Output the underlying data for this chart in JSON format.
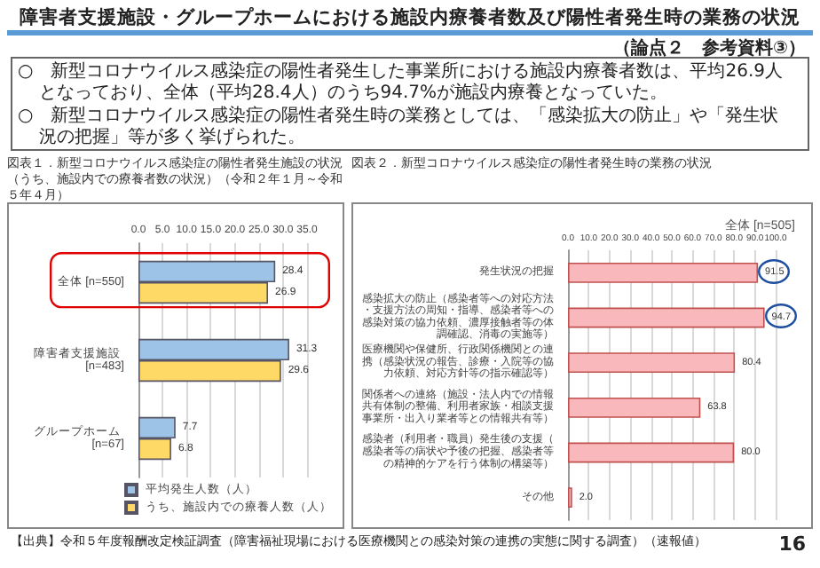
{
  "chart_data": [
    {
      "type": "bar",
      "orientation": "horizontal",
      "title": "図表１．新型コロナウイルス感染症の陽性者発生施設の状況（うち、施設内での療養者数の状況）（令和２年１月～令和５年４月）",
      "annotations": [
        "障害者支援施設・グループホームにおける施設内療養者数及び陽性者発生時の業務の状況",
        "（論点２　参考資料③）",
        "○　新型コロナウイルス感染症の陽性者発生した事業所における施設内療養者数は、平均26.9人となっており、全体（平均28.4人）のうち94.7%が施設内療養となっていた。",
        "○　新型コロナウイルス感染症の陽性者発生時の業務としては、「感染拡大の防止」や「発生状況の把握」等が多く挙げられた。",
        "【出典】令和５年度報酬改定検証調査（障害福祉現場における医療機関との感染対策の連携の実態に関する調査）（速報値）",
        "16"
      ],
      "categories": [
        "全体 [n=550]",
        "障害者支援施設 [n=483]",
        "グループホーム [n=67]"
      ],
      "series": [
        {
          "name": "平均発生人数（人）",
          "color": "#9dc3e6",
          "values": [
            28.4,
            31.3,
            7.7
          ]
        },
        {
          "name": "うち、施設内での療養人数（人）",
          "color": "#ffd966",
          "values": [
            26.9,
            29.6,
            6.8
          ]
        }
      ],
      "xlim": [
        0,
        35
      ],
      "xticks": [
        {
          "value": 0,
          "label": "0.0"
        },
        {
          "value": 5,
          "label": "5.0"
        },
        {
          "value": 10,
          "label": "10.0"
        },
        {
          "value": 15,
          "label": "15.0"
        },
        {
          "value": 20,
          "label": "20.0"
        },
        {
          "value": 25,
          "label": "25.0"
        },
        {
          "value": 30,
          "label": "30.0"
        },
        {
          "value": 35,
          "label": "35.0"
        }
      ],
      "grid": "x",
      "legend": "bottom",
      "data_labels": true
    },
    {
      "type": "bar",
      "orientation": "horizontal",
      "title": "図表２．新型コロナウイルス感染症の陽性者発生時の業務の状況",
      "subtitle": "全体 [n=505]",
      "categories": [
        "発生状況の把握",
        "感染拡大の防止（感染者等への対応方法・支援方法の周知・指導、感染者等への感染対策の協力依頼、濃厚接触者等の体調確認、消毒の実施等）",
        "医療機関や保健所、行政関係機関との連携（感染状況の報告、診療・入院等の協力依頼、対応方針等の指示確認等）",
        "関係者への連絡（施設・法人内での情報共有体制の整備、利用者家族・相談支援事業所・出入り業者等との情報共有等）",
        "感染者（利用者・職員）発生後の支援（感染者等の病状や予後の把握、感染者等の精神的ケアを行う体制の構築等）",
        "その他"
      ],
      "values": [
        91.5,
        94.7,
        80.4,
        63.8,
        80.0,
        2.0
      ],
      "value_labels": [
        "91.5",
        "94.7",
        "80.4",
        "63.8",
        "80.0",
        "2.0"
      ],
      "color": "#f8b8bc",
      "xlim": [
        0,
        100
      ],
      "xticks": [
        {
          "value": 0,
          "label": "0.0"
        },
        {
          "value": 10,
          "label": "10.0"
        },
        {
          "value": 20,
          "label": "20.0"
        },
        {
          "value": 30,
          "label": "30.0"
        },
        {
          "value": 40,
          "label": "40.0"
        },
        {
          "value": 50,
          "label": "50.0"
        },
        {
          "value": 60,
          "label": "60.0"
        },
        {
          "value": 70,
          "label": "70.0"
        },
        {
          "value": 80,
          "label": "80.0"
        },
        {
          "value": 90,
          "label": "90.0"
        },
        {
          "value": 100,
          "label": "100.0"
        }
      ],
      "grid": "x"
    }
  ]
}
